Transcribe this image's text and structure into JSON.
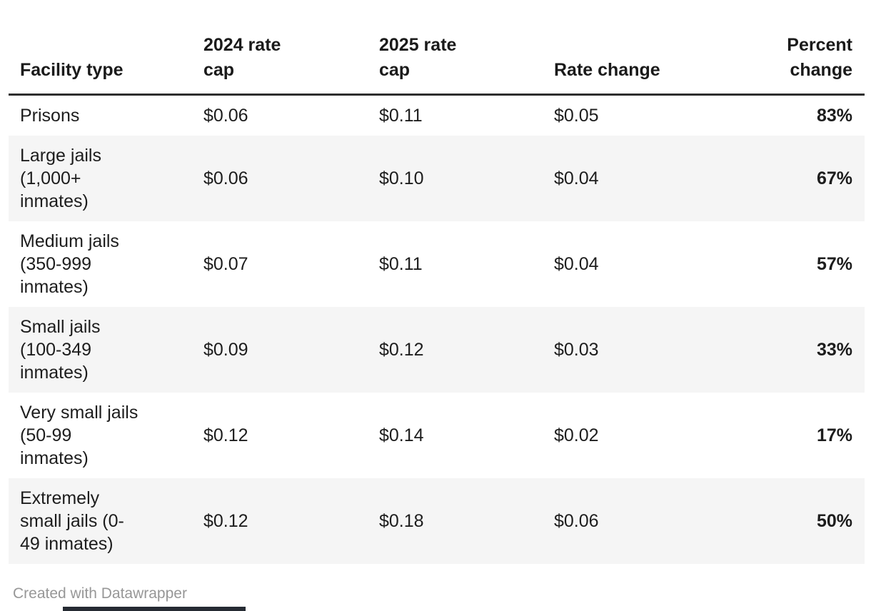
{
  "table": {
    "columns": [
      {
        "key": "facility",
        "label": "Facility type"
      },
      {
        "key": "cap2024",
        "label": "2024 rate\ncap"
      },
      {
        "key": "cap2025",
        "label": "2025 rate\ncap"
      },
      {
        "key": "change",
        "label": "Rate change"
      },
      {
        "key": "percent",
        "label": "Percent\nchange"
      }
    ],
    "rows": [
      {
        "facility": "Prisons",
        "cap2024": "$0.06",
        "cap2025": "$0.11",
        "change": "$0.05",
        "percent": "83%"
      },
      {
        "facility": "Large jails\n(1,000+\ninmates)",
        "cap2024": "$0.06",
        "cap2025": "$0.10",
        "change": "$0.04",
        "percent": "67%"
      },
      {
        "facility": "Medium jails\n(350-999\ninmates)",
        "cap2024": "$0.07",
        "cap2025": "$0.11",
        "change": "$0.04",
        "percent": "57%"
      },
      {
        "facility": "Small jails\n(100-349\ninmates)",
        "cap2024": "$0.09",
        "cap2025": "$0.12",
        "change": "$0.03",
        "percent": "33%"
      },
      {
        "facility": "Very small jails\n(50-99\ninmates)",
        "cap2024": "$0.12",
        "cap2025": "$0.14",
        "change": "$0.02",
        "percent": "17%"
      },
      {
        "facility": "Extremely\nsmall jails (0-\n49 inmates)",
        "cap2024": "$0.12",
        "cap2025": "$0.18",
        "change": "$0.06",
        "percent": "50%"
      }
    ]
  },
  "chart_data": {
    "type": "table",
    "columns": [
      "Facility type",
      "2024 rate cap",
      "2025 rate cap",
      "Rate change",
      "Percent change"
    ],
    "rows": [
      [
        "Prisons",
        0.06,
        0.11,
        0.05,
        "83%"
      ],
      [
        "Large jails (1,000+ inmates)",
        0.06,
        0.1,
        0.04,
        "67%"
      ],
      [
        "Medium jails (350-999 inmates)",
        0.07,
        0.11,
        0.04,
        "57%"
      ],
      [
        "Small jails (100-349 inmates)",
        0.09,
        0.12,
        0.03,
        "33%"
      ],
      [
        "Very small jails (50-99 inmates)",
        0.12,
        0.14,
        0.02,
        "17%"
      ],
      [
        "Extremely small jails (0-49 inmates)",
        0.12,
        0.18,
        0.06,
        "50%"
      ]
    ],
    "notes": "Percent change values rendered bold; alternating rows shaded"
  },
  "footer": {
    "attribution": "Created with Datawrapper"
  },
  "colors": {
    "text": "#1a1a1a",
    "header_border": "#2e2e2e",
    "row_shade": "#f5f5f5",
    "attribution_text": "#979797",
    "bottom_bar": "#262b33",
    "background": "#ffffff"
  }
}
